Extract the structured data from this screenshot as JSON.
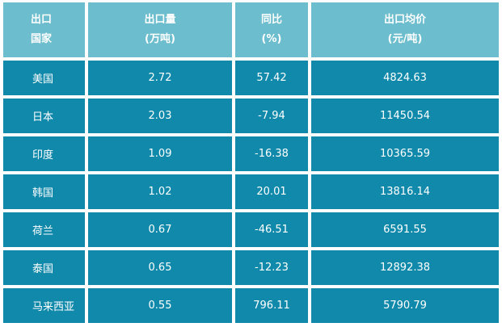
{
  "table": {
    "header": [
      [
        "出口",
        "国家"
      ],
      [
        "出口量",
        "(万吨)"
      ],
      [
        "同比",
        "(%)"
      ],
      [
        "出口均价",
        "(元/吨)"
      ]
    ],
    "rows": [
      [
        "美国",
        "2.72",
        "57.42",
        "4824.63"
      ],
      [
        "日本",
        "2.03",
        "-7.94",
        "11450.54"
      ],
      [
        "印度",
        "1.09",
        "-16.38",
        "10365.59"
      ],
      [
        "韩国",
        "1.02",
        "20.01",
        "13816.14"
      ],
      [
        "荷兰",
        "0.67",
        "-46.51",
        "6591.55"
      ],
      [
        "泰国",
        "0.65",
        "-12.23",
        "12892.38"
      ],
      [
        "马来西亚",
        "0.55",
        "796.11",
        "5790.79"
      ]
    ]
  }
}
